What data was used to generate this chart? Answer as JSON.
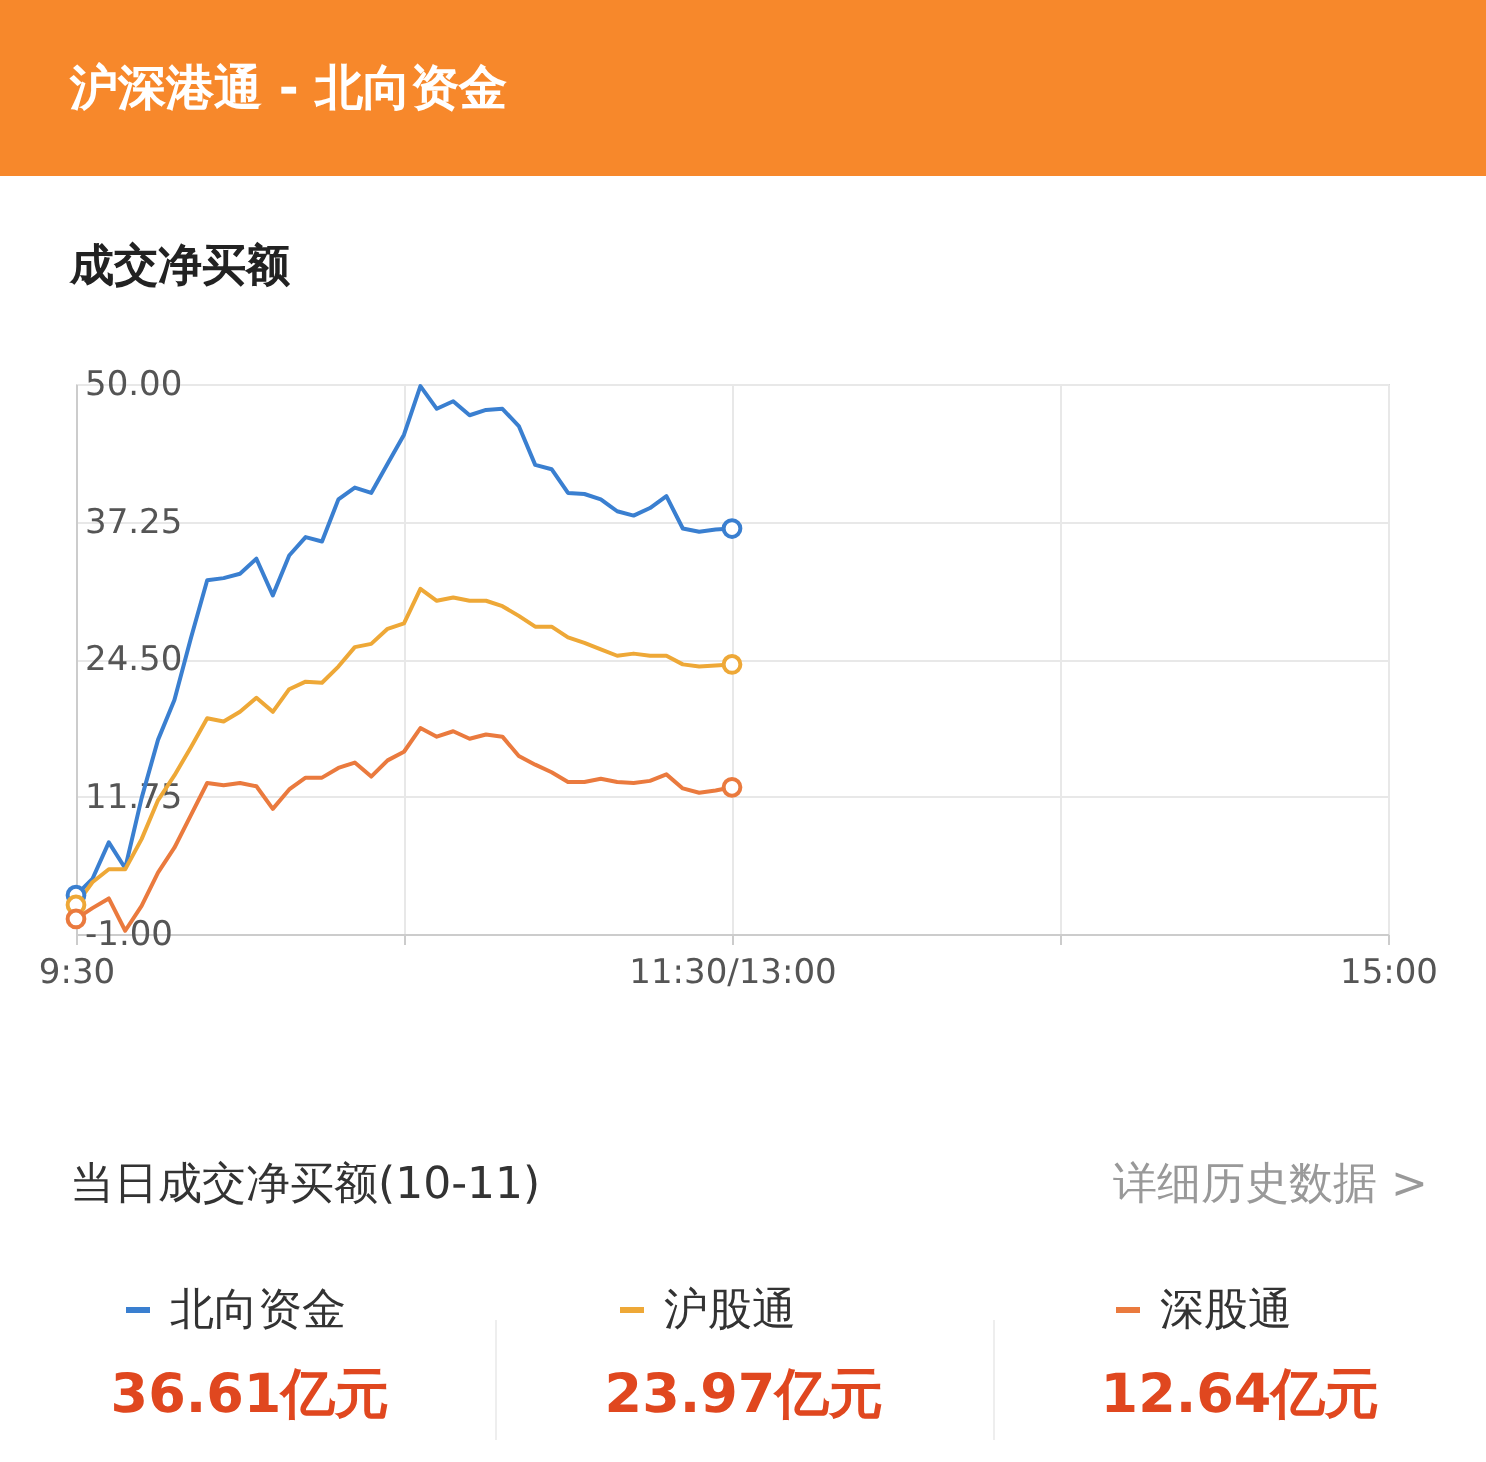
{
  "chart_data": {
    "type": "line",
    "title": "沪深港通 - 北向资金",
    "subtitle": "成交净买额",
    "categories": [
      "9:30",
      null,
      null,
      null,
      null,
      null,
      null,
      null,
      null,
      null,
      null,
      null,
      null,
      null,
      null,
      null,
      null,
      null,
      null,
      null,
      null,
      null,
      null,
      null,
      null,
      null,
      null,
      null,
      null,
      null,
      null,
      null,
      null,
      null,
      null,
      null,
      null,
      null,
      null,
      null,
      "11:30/13:00",
      null,
      null,
      null,
      null,
      null,
      null,
      null,
      null,
      null,
      null,
      null,
      null,
      null,
      null,
      null,
      null,
      null,
      null,
      null,
      null,
      null,
      null,
      null,
      null,
      null,
      null,
      null,
      null,
      null,
      null,
      null,
      null,
      null,
      null,
      null,
      null,
      null,
      null,
      null,
      "15:00"
    ],
    "series": [
      {
        "name": "北向资金",
        "color": "#3a7fd0",
        "values": [
          2.6,
          4.1,
          7.5,
          5.1,
          11.6,
          17.0,
          20.7,
          26.4,
          31.8,
          32.0,
          32.4,
          33.8,
          30.4,
          34.1,
          35.8,
          35.4,
          39.3,
          40.4,
          39.9,
          42.6,
          45.3,
          49.8,
          47.7,
          48.4,
          47.1,
          47.6,
          47.7,
          46.1,
          42.5,
          42.1,
          39.9,
          39.8,
          39.3,
          38.2,
          37.8,
          38.5,
          39.6,
          36.6,
          36.3,
          36.5,
          36.6,
          null,
          null,
          null,
          null,
          null,
          null,
          null,
          null,
          null,
          null,
          null,
          null,
          null,
          null,
          null,
          null,
          null,
          null,
          null,
          null,
          null,
          null,
          null,
          null,
          null,
          null,
          null,
          null,
          null,
          null,
          null,
          null,
          null,
          null,
          null,
          null,
          null,
          null,
          null,
          null
        ]
      },
      {
        "name": "沪股通",
        "color": "#eea837",
        "values": [
          1.7,
          3.8,
          5.0,
          5.0,
          7.8,
          11.4,
          13.7,
          16.3,
          19.0,
          18.7,
          19.6,
          20.9,
          19.6,
          21.7,
          22.4,
          22.3,
          23.8,
          25.6,
          25.9,
          27.3,
          27.8,
          31.0,
          29.9,
          30.2,
          29.9,
          29.9,
          29.4,
          28.5,
          27.5,
          27.5,
          26.5,
          26.0,
          25.4,
          24.8,
          25.0,
          24.8,
          24.8,
          24.0,
          23.8,
          23.9,
          24.0,
          null,
          null,
          null,
          null,
          null,
          null,
          null,
          null,
          null,
          null,
          null,
          null,
          null,
          null,
          null,
          null,
          null,
          null,
          null,
          null,
          null,
          null,
          null,
          null,
          null,
          null,
          null,
          null,
          null,
          null,
          null,
          null,
          null,
          null,
          null,
          null,
          null,
          null,
          null,
          null
        ]
      },
      {
        "name": "深股通",
        "color": "#ea7a3e",
        "values": [
          0.4,
          1.4,
          2.3,
          -0.7,
          1.6,
          4.7,
          7.0,
          10.0,
          13.0,
          12.8,
          13.0,
          12.7,
          10.6,
          12.4,
          13.5,
          13.5,
          14.4,
          14.9,
          13.6,
          15.1,
          15.9,
          18.1,
          17.3,
          17.8,
          17.1,
          17.5,
          17.3,
          15.5,
          14.7,
          14.0,
          13.1,
          13.1,
          13.4,
          13.1,
          13.0,
          13.2,
          13.8,
          12.5,
          12.1,
          12.3,
          12.6,
          null,
          null,
          null,
          null,
          null,
          null,
          null,
          null,
          null,
          null,
          null,
          null,
          null,
          null,
          null,
          null,
          null,
          null,
          null,
          null,
          null,
          null,
          null,
          null,
          null,
          null,
          null,
          null,
          null,
          null,
          null,
          null,
          null,
          null,
          null,
          null,
          null,
          null,
          null,
          null
        ]
      }
    ],
    "ylim": [
      -1,
      50
    ],
    "yticks": [
      {
        "value": -1,
        "label": "-1.00"
      },
      {
        "value": 11.75,
        "label": "11.75"
      },
      {
        "value": 24.5,
        "label": "24.50"
      },
      {
        "value": 37.25,
        "label": "37.25"
      },
      {
        "value": 50,
        "label": "50.00"
      }
    ],
    "grid": true,
    "legend": "bottom",
    "line_style": "solid",
    "annotations": [
      "当日成交净买额(10-11)",
      "详细历史数据 >",
      "36.61亿元",
      "23.97亿元",
      "12.64亿元"
    ]
  }
}
